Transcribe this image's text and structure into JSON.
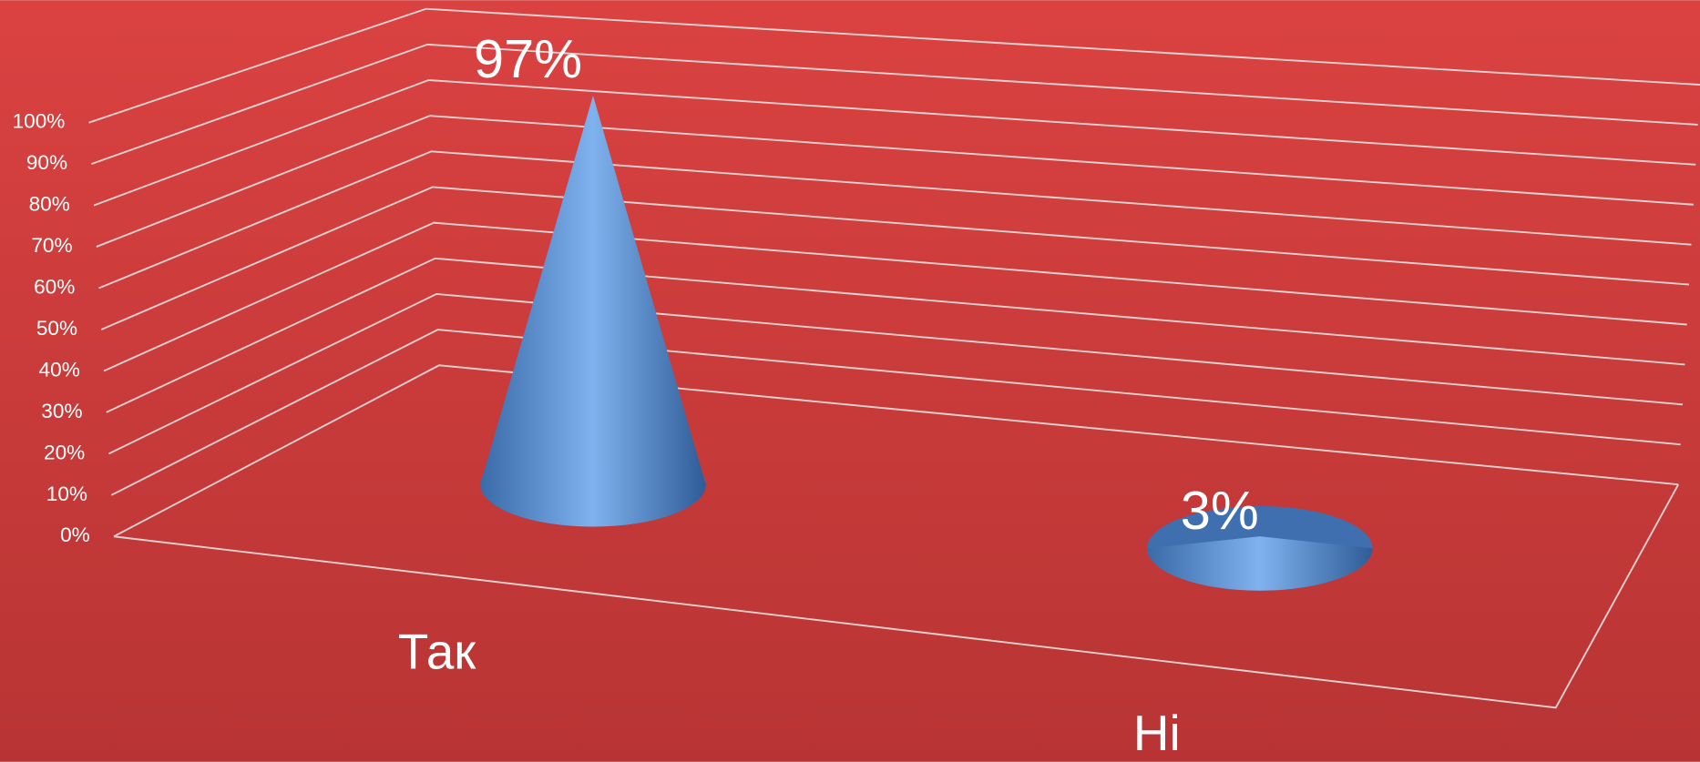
{
  "chart_data": {
    "type": "cone3d",
    "categories": [
      "Так",
      "Ні"
    ],
    "values": [
      97,
      3
    ],
    "value_labels": [
      "97%",
      "3%"
    ],
    "color": "#5b93d6",
    "ylim": [
      0,
      100
    ],
    "yticks": [
      {
        "value": 0,
        "label": "0%"
      },
      {
        "value": 10,
        "label": "10%"
      },
      {
        "value": 20,
        "label": "20%"
      },
      {
        "value": 30,
        "label": "30%"
      },
      {
        "value": 40,
        "label": "40%"
      },
      {
        "value": 50,
        "label": "50%"
      },
      {
        "value": 60,
        "label": "60%"
      },
      {
        "value": 70,
        "label": "70%"
      },
      {
        "value": 80,
        "label": "80%"
      },
      {
        "value": 90,
        "label": "90%"
      },
      {
        "value": 100,
        "label": "100%"
      }
    ],
    "grid": true
  }
}
